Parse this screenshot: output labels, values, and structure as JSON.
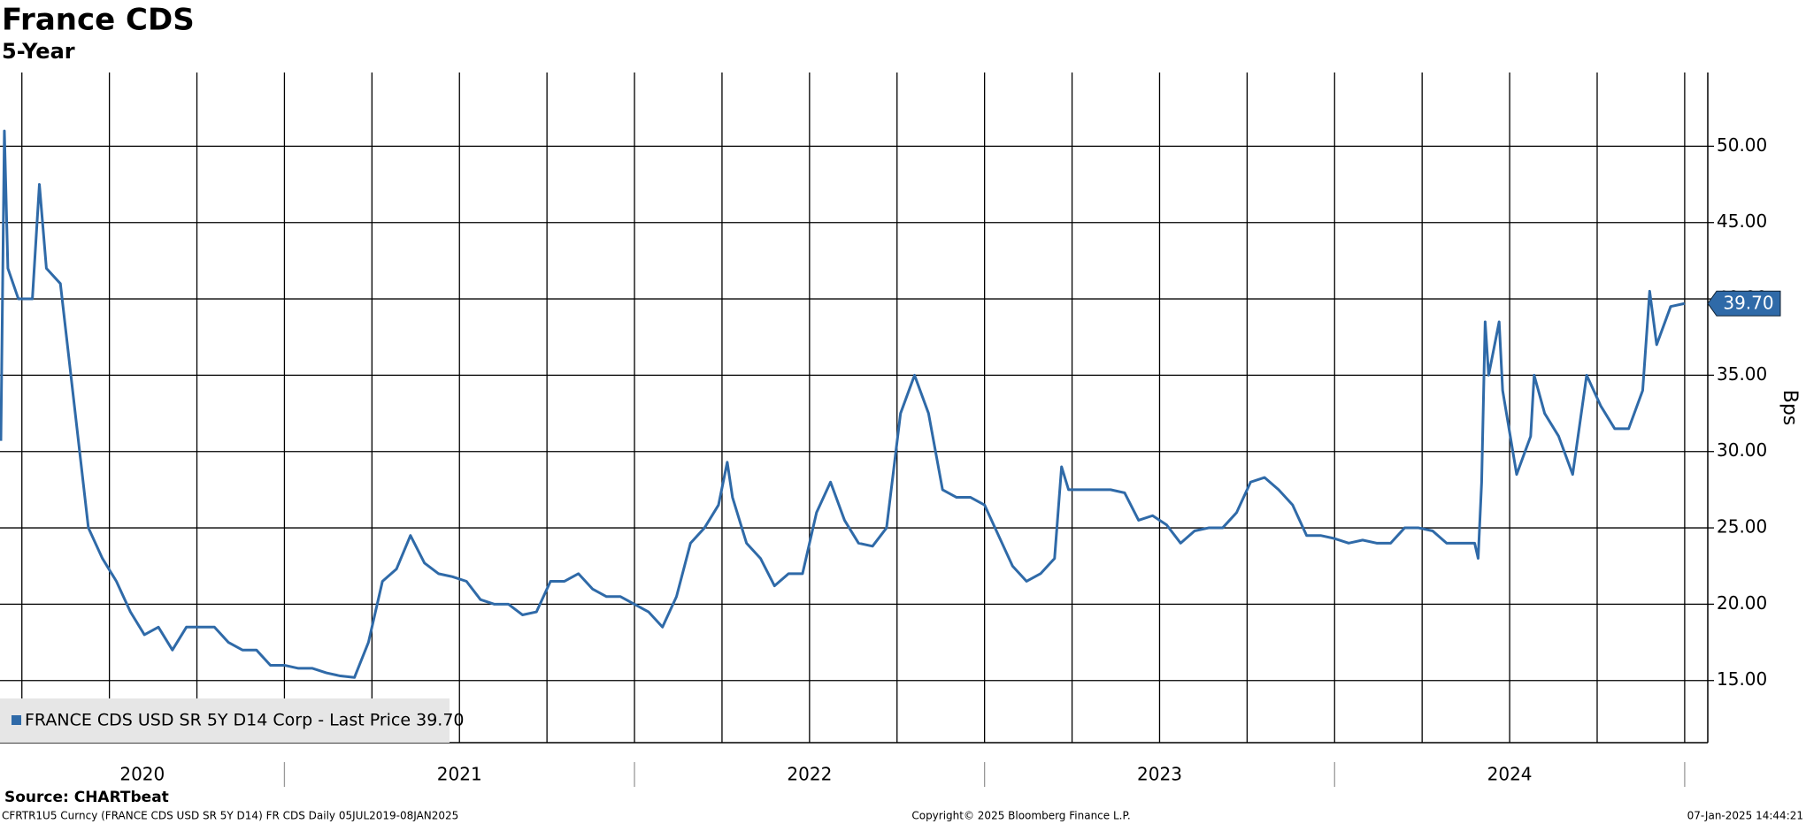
{
  "chart_data": {
    "type": "line",
    "title": "France CDS",
    "subtitle": "5-Year",
    "y_axis_label": "Bps",
    "source": "Source: CHARTbeat",
    "footer_left": "CFRTR1U5 Curncy (FRANCE CDS USD SR 5Y D14) FR CDS  Daily 05JUL2019-08JAN2025",
    "footer_center": "Copyright© 2025 Bloomberg Finance L.P.",
    "footer_right": "07-Jan-2025 14:44:21",
    "xlim": [
      2020.1875,
      2025.066
    ],
    "ylim": [
      10.93,
      54.83
    ],
    "xticks": [
      {
        "value": 2020.594,
        "label": "2020"
      },
      {
        "value": 2021.5,
        "label": "2021"
      },
      {
        "value": 2022.5,
        "label": "2022"
      },
      {
        "value": 2023.5,
        "label": "2023"
      },
      {
        "value": 2024.5,
        "label": "2024"
      }
    ],
    "xgrid": [
      2020.25,
      2020.5,
      2020.75,
      2021,
      2021.25,
      2021.5,
      2021.75,
      2022,
      2022.25,
      2022.5,
      2022.75,
      2023,
      2023.25,
      2023.5,
      2023.75,
      2024,
      2024.25,
      2024.5,
      2024.75,
      2025
    ],
    "yticks": [
      {
        "value": 15,
        "label": "15.00"
      },
      {
        "value": 20,
        "label": "20.00"
      },
      {
        "value": 25,
        "label": "25.00"
      },
      {
        "value": 30,
        "label": "30.00"
      },
      {
        "value": 35,
        "label": "35.00"
      },
      {
        "value": 40,
        "label": "40.00"
      },
      {
        "value": 45,
        "label": "45.00"
      },
      {
        "value": 50,
        "label": "50.00"
      }
    ],
    "grid": true,
    "legend": "bottom-left",
    "last_price": {
      "value": 39.7,
      "label": "39.70"
    },
    "x": [
      2020.19,
      2020.2,
      2020.21,
      2020.24,
      2020.28,
      2020.3,
      2020.32,
      2020.36,
      2020.4,
      2020.44,
      2020.48,
      2020.52,
      2020.56,
      2020.6,
      2020.64,
      2020.68,
      2020.72,
      2020.76,
      2020.8,
      2020.84,
      2020.88,
      2020.92,
      2020.96,
      2021.0,
      2021.04,
      2021.08,
      2021.12,
      2021.16,
      2021.2,
      2021.24,
      2021.28,
      2021.32,
      2021.36,
      2021.4,
      2021.44,
      2021.48,
      2021.52,
      2021.56,
      2021.6,
      2021.64,
      2021.68,
      2021.72,
      2021.76,
      2021.8,
      2021.84,
      2021.88,
      2021.92,
      2021.96,
      2022.0,
      2022.04,
      2022.08,
      2022.12,
      2022.16,
      2022.2,
      2022.24,
      2022.265,
      2022.28,
      2022.32,
      2022.36,
      2022.4,
      2022.44,
      2022.48,
      2022.52,
      2022.56,
      2022.6,
      2022.64,
      2022.68,
      2022.72,
      2022.76,
      2022.8,
      2022.84,
      2022.88,
      2022.92,
      2022.96,
      2023.0,
      2023.04,
      2023.08,
      2023.12,
      2023.16,
      2023.2,
      2023.22,
      2023.24,
      2023.28,
      2023.32,
      2023.36,
      2023.4,
      2023.44,
      2023.48,
      2023.52,
      2023.56,
      2023.6,
      2023.64,
      2023.68,
      2023.72,
      2023.76,
      2023.8,
      2023.84,
      2023.88,
      2023.92,
      2023.96,
      2024.0,
      2024.04,
      2024.08,
      2024.12,
      2024.16,
      2024.2,
      2024.24,
      2024.28,
      2024.32,
      2024.36,
      2024.4,
      2024.41,
      2024.42,
      2024.43,
      2024.44,
      2024.47,
      2024.48,
      2024.52,
      2024.56,
      2024.57,
      2024.6,
      2024.64,
      2024.68,
      2024.72,
      2024.76,
      2024.8,
      2024.84,
      2024.88,
      2024.9,
      2024.92,
      2024.96,
      2025.0
    ],
    "series": [
      {
        "name": "FRANCE CDS USD SR 5Y D14 Corp - Last Price 39.70",
        "color": "#2f6aa8",
        "values": [
          30.7,
          51,
          42,
          40,
          40,
          47.5,
          42,
          41,
          33,
          25,
          23,
          21.5,
          19.5,
          18,
          18.5,
          17,
          18.5,
          18.5,
          18.5,
          17.5,
          17,
          17,
          16,
          16,
          15.8,
          15.8,
          15.5,
          15.3,
          15.2,
          17.5,
          21.5,
          22.3,
          24.5,
          22.7,
          22,
          21.8,
          21.5,
          20.3,
          20,
          20,
          19.3,
          19.5,
          21.5,
          21.5,
          22,
          21,
          20.5,
          20.5,
          20,
          19.5,
          18.5,
          20.5,
          24,
          25,
          26.5,
          29.3,
          27,
          24,
          23,
          21.2,
          22,
          22,
          26,
          28,
          25.5,
          24,
          23.8,
          25,
          32.5,
          35,
          32.5,
          27.5,
          27,
          27,
          26.5,
          24.5,
          22.5,
          21.5,
          22,
          23,
          29,
          27.5,
          27.5,
          27.5,
          27.5,
          27.3,
          25.5,
          25.8,
          25.2,
          24,
          24.8,
          25,
          25,
          26,
          28,
          28.3,
          27.5,
          26.5,
          24.5,
          24.5,
          24.3,
          24,
          24.2,
          24,
          24,
          25,
          25,
          24.8,
          24,
          24,
          24,
          23,
          28,
          38.5,
          35,
          38.5,
          34,
          28.5,
          31,
          35,
          32.5,
          31,
          28.5,
          35,
          33,
          31.5,
          31.5,
          34,
          40.5,
          37,
          39.5,
          39.7
        ]
      }
    ]
  }
}
